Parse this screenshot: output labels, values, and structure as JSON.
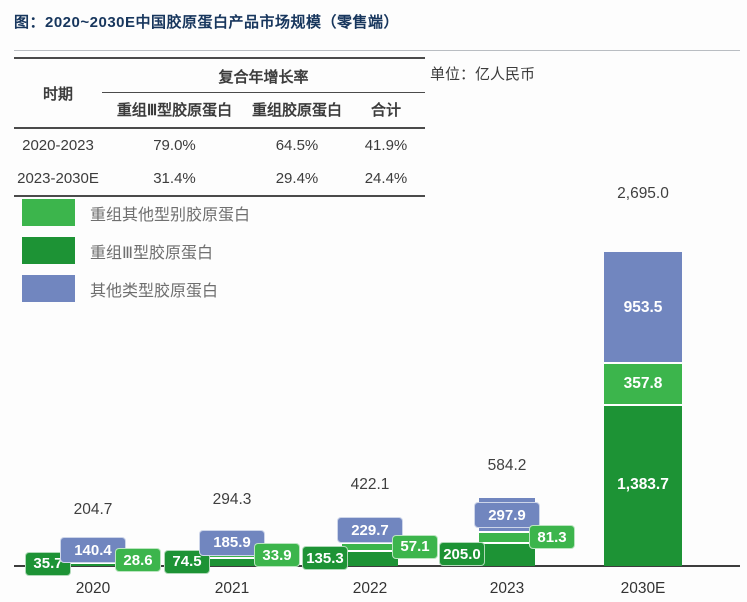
{
  "title": "图：2020~2030E中国胶原蛋白产品市场规模（零售端）",
  "unit_label": "单位：亿人民币",
  "table": {
    "period_header": "时期",
    "cagr_header": "复合年增长率",
    "sub_headers": [
      "重组Ⅲ型胶原蛋白",
      "重组胶原蛋白",
      "合计"
    ],
    "rows": [
      {
        "period": "2020-2023",
        "values": [
          "79.0%",
          "64.5%",
          "41.9%"
        ]
      },
      {
        "period": "2023-2030E",
        "values": [
          "31.4%",
          "29.4%",
          "24.4%"
        ]
      }
    ]
  },
  "legend": [
    {
      "label": "重组其他型别胶原蛋白",
      "color_key": "light_green"
    },
    {
      "label": "重组Ⅲ型胶原蛋白",
      "color_key": "dark_green"
    },
    {
      "label": "其他类型胶原蛋白",
      "color_key": "blue"
    }
  ],
  "colors": {
    "light_green": "#3cb54c",
    "dark_green": "#1d9335",
    "blue": "#7186bf",
    "title": "#17365d",
    "axis": "#3d3d3d",
    "tline": "#4b4b4b",
    "label": "#3f3f3f"
  },
  "chart_data": {
    "type": "bar",
    "stacked": true,
    "unit": "亿人民币",
    "title": "2020~2030E中国胶原蛋白产品市场规模（零售端）",
    "categories": [
      "2020",
      "2021",
      "2022",
      "2023",
      "2030E"
    ],
    "stack_order_bottom_to_top": [
      "重组Ⅲ型胶原蛋白",
      "重组其他型别胶原蛋白",
      "其他类型胶原蛋白"
    ],
    "series": [
      {
        "name": "重组Ⅲ型胶原蛋白",
        "color_key": "dark_green",
        "values": [
          35.7,
          74.5,
          135.3,
          205.0,
          1383.7
        ],
        "labels": [
          "35.7",
          "74.5",
          "135.3",
          "205.0",
          "1,383.7"
        ]
      },
      {
        "name": "重组其他型别胶原蛋白",
        "color_key": "light_green",
        "values": [
          28.6,
          33.9,
          57.1,
          81.3,
          357.8
        ],
        "labels": [
          "28.6",
          "33.9",
          "57.1",
          "81.3",
          "357.8"
        ]
      },
      {
        "name": "其他类型胶原蛋白",
        "color_key": "blue",
        "values": [
          140.4,
          185.9,
          229.7,
          297.9,
          953.5
        ],
        "labels": [
          "140.4",
          "185.9",
          "229.7",
          "297.9",
          "953.5"
        ]
      }
    ],
    "totals": [
      204.7,
      294.3,
      422.1,
      584.2,
      2695.0
    ],
    "total_labels": [
      "204.7",
      "294.3",
      "422.1",
      "584.2",
      "2,695.0"
    ],
    "ylim": [
      0,
      2695
    ],
    "legend_position": "top-left",
    "grid": false
  }
}
